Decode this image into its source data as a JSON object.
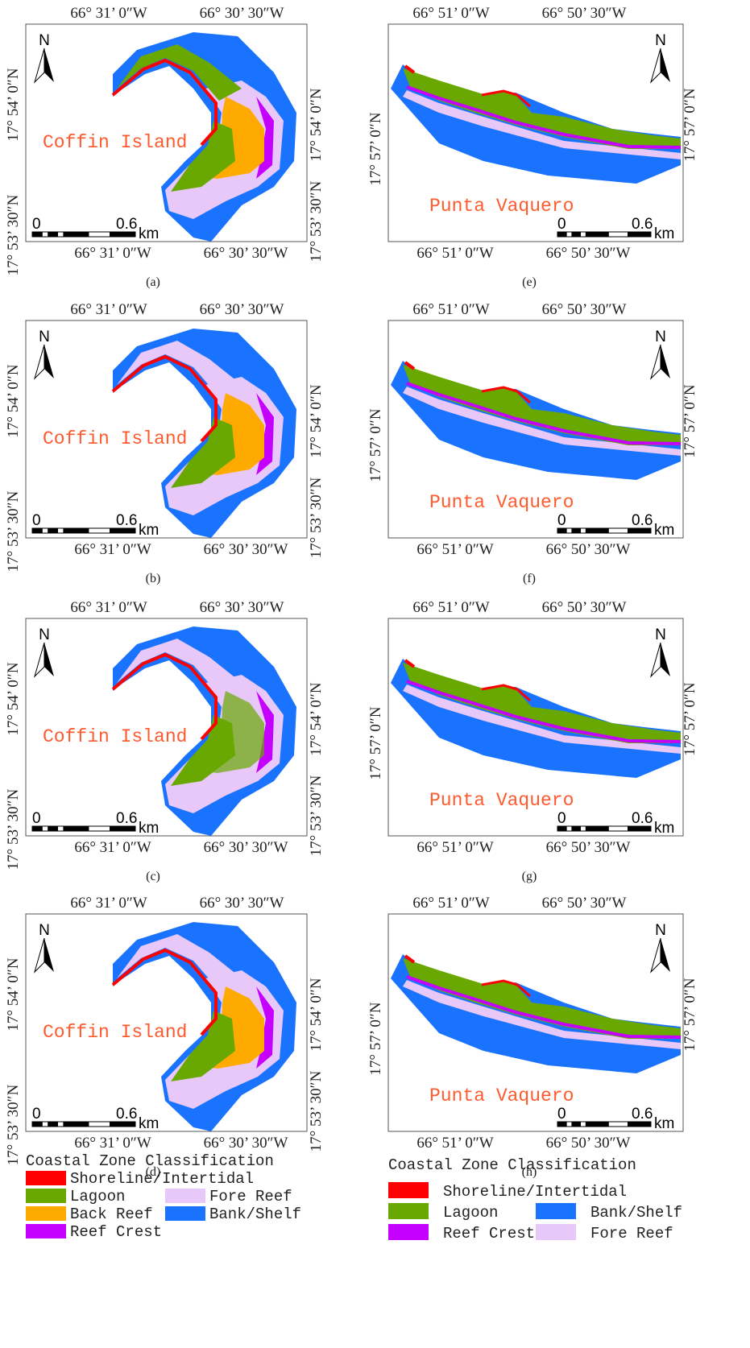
{
  "panels": [
    {
      "caption": "(a)",
      "place": "Coffin Island",
      "north": "N",
      "scale": {
        "start": "0",
        "end": "0.6",
        "unit": "km"
      },
      "top_labels": [
        "66° 31’ 0″W",
        "66° 30’ 30″W"
      ],
      "bottom_labels": [
        "66° 31’ 0″W",
        "66° 30’ 30″W"
      ],
      "left_labels": [
        "17° 54’ 0″N",
        "17° 53’ 30″N"
      ],
      "right_labels": [
        "17° 54’ 0″N",
        "17° 53’ 30″N"
      ]
    },
    {
      "caption": "(b)",
      "place": "Coffin Island",
      "north": "N",
      "scale": {
        "start": "0",
        "end": "0.6",
        "unit": "km"
      },
      "top_labels": [
        "66° 31’ 0″W",
        "66° 30’ 30″W"
      ],
      "bottom_labels": [
        "66° 31’ 0″W",
        "66° 30’ 30″W"
      ],
      "left_labels": [
        "17° 54’ 0″N",
        "17° 53’ 30″N"
      ],
      "right_labels": [
        "17° 54’ 0″N",
        "17° 53’ 30″N"
      ]
    },
    {
      "caption": "(c)",
      "place": "Coffin Island",
      "north": "N",
      "scale": {
        "start": "0",
        "end": "0.6",
        "unit": "km"
      },
      "top_labels": [
        "66° 31’ 0″W",
        "66° 30’ 30″W"
      ],
      "bottom_labels": [
        "66° 31’ 0″W",
        "66° 30’ 30″W"
      ],
      "left_labels": [
        "17° 54’ 0″N",
        "17° 53’ 30″N"
      ],
      "right_labels": [
        "17° 54’ 0″N",
        "17° 53’ 30″N"
      ]
    },
    {
      "caption": "(d)",
      "place": "Coffin Island",
      "north": "N",
      "scale": {
        "start": "0",
        "end": "0.6",
        "unit": "km"
      },
      "top_labels": [
        "66° 31’ 0″W",
        "66° 30’ 30″W"
      ],
      "bottom_labels": [
        "66° 31’ 0″W",
        "66° 30’ 30″W"
      ],
      "left_labels": [
        "17° 54’ 0″N",
        "17° 53’ 30″N"
      ],
      "right_labels": [
        "17° 54’ 0″N",
        "17° 53’ 30″N"
      ]
    },
    {
      "caption": "(e)",
      "place": "Punta Vaquero",
      "north": "N",
      "scale": {
        "start": "0",
        "end": "0.6",
        "unit": "km"
      },
      "top_labels": [
        "66° 51’ 0″W",
        "66° 50’ 30″W"
      ],
      "bottom_labels": [
        "66° 51’ 0″W",
        "66° 50’ 30″W"
      ],
      "left_labels": [
        "17° 57’ 0″N"
      ],
      "right_labels": [
        "17° 57’ 0″N"
      ]
    },
    {
      "caption": "(f)",
      "place": "Punta Vaquero",
      "north": "N",
      "scale": {
        "start": "0",
        "end": "0.6",
        "unit": "km"
      },
      "top_labels": [
        "66° 51’ 0″W",
        "66° 50’ 30″W"
      ],
      "bottom_labels": [
        "66° 51’ 0″W",
        "66° 50’ 30″W"
      ],
      "left_labels": [
        "17° 57’ 0″N"
      ],
      "right_labels": [
        "17° 57’ 0″N"
      ]
    },
    {
      "caption": "(g)",
      "place": "Punta Vaquero",
      "north": "N",
      "scale": {
        "start": "0",
        "end": "0.6",
        "unit": "km"
      },
      "top_labels": [
        "66° 51’ 0″W",
        "66° 50’ 30″W"
      ],
      "bottom_labels": [
        "66° 51’ 0″W",
        "66° 50’ 30″W"
      ],
      "left_labels": [
        "17° 57’ 0″N"
      ],
      "right_labels": [
        "17° 57’ 0″N"
      ]
    },
    {
      "caption": "(h)",
      "place": "Punta Vaquero",
      "north": "N",
      "scale": {
        "start": "0",
        "end": "0.6",
        "unit": "km"
      },
      "top_labels": [
        "66° 51’ 0″W",
        "66° 50’ 30″W"
      ],
      "bottom_labels": [
        "66° 51’ 0″W",
        "66° 50’ 30″W"
      ],
      "left_labels": [
        "17° 57’ 0″N"
      ],
      "right_labels": [
        "17° 57’ 0″N"
      ]
    }
  ],
  "legends": [
    {
      "title": "Coastal Zone Classification",
      "items": [
        {
          "label": "Shoreline/Intertidal",
          "color": "#ff0000"
        },
        {
          "label": "Lagoon",
          "color": "#68a800"
        },
        {
          "label": "Back Reef",
          "color": "#ffaa00"
        },
        {
          "label": "Reef Crest",
          "color": "#c500ff"
        },
        {
          "label": "Fore Reef",
          "color": "#e8c8f8"
        },
        {
          "label": "Bank/Shelf",
          "color": "#1a73ff"
        }
      ]
    },
    {
      "title": "Coastal Zone Classification",
      "items": [
        {
          "label": "Shoreline/Intertidal",
          "color": "#ff0000"
        },
        {
          "label": "Lagoon",
          "color": "#68a800"
        },
        {
          "label": "Bank/Shelf",
          "color": "#1a73ff"
        },
        {
          "label": "Reef Crest",
          "color": "#c500ff"
        },
        {
          "label": "Fore Reef",
          "color": "#e8c8f8"
        }
      ]
    }
  ]
}
